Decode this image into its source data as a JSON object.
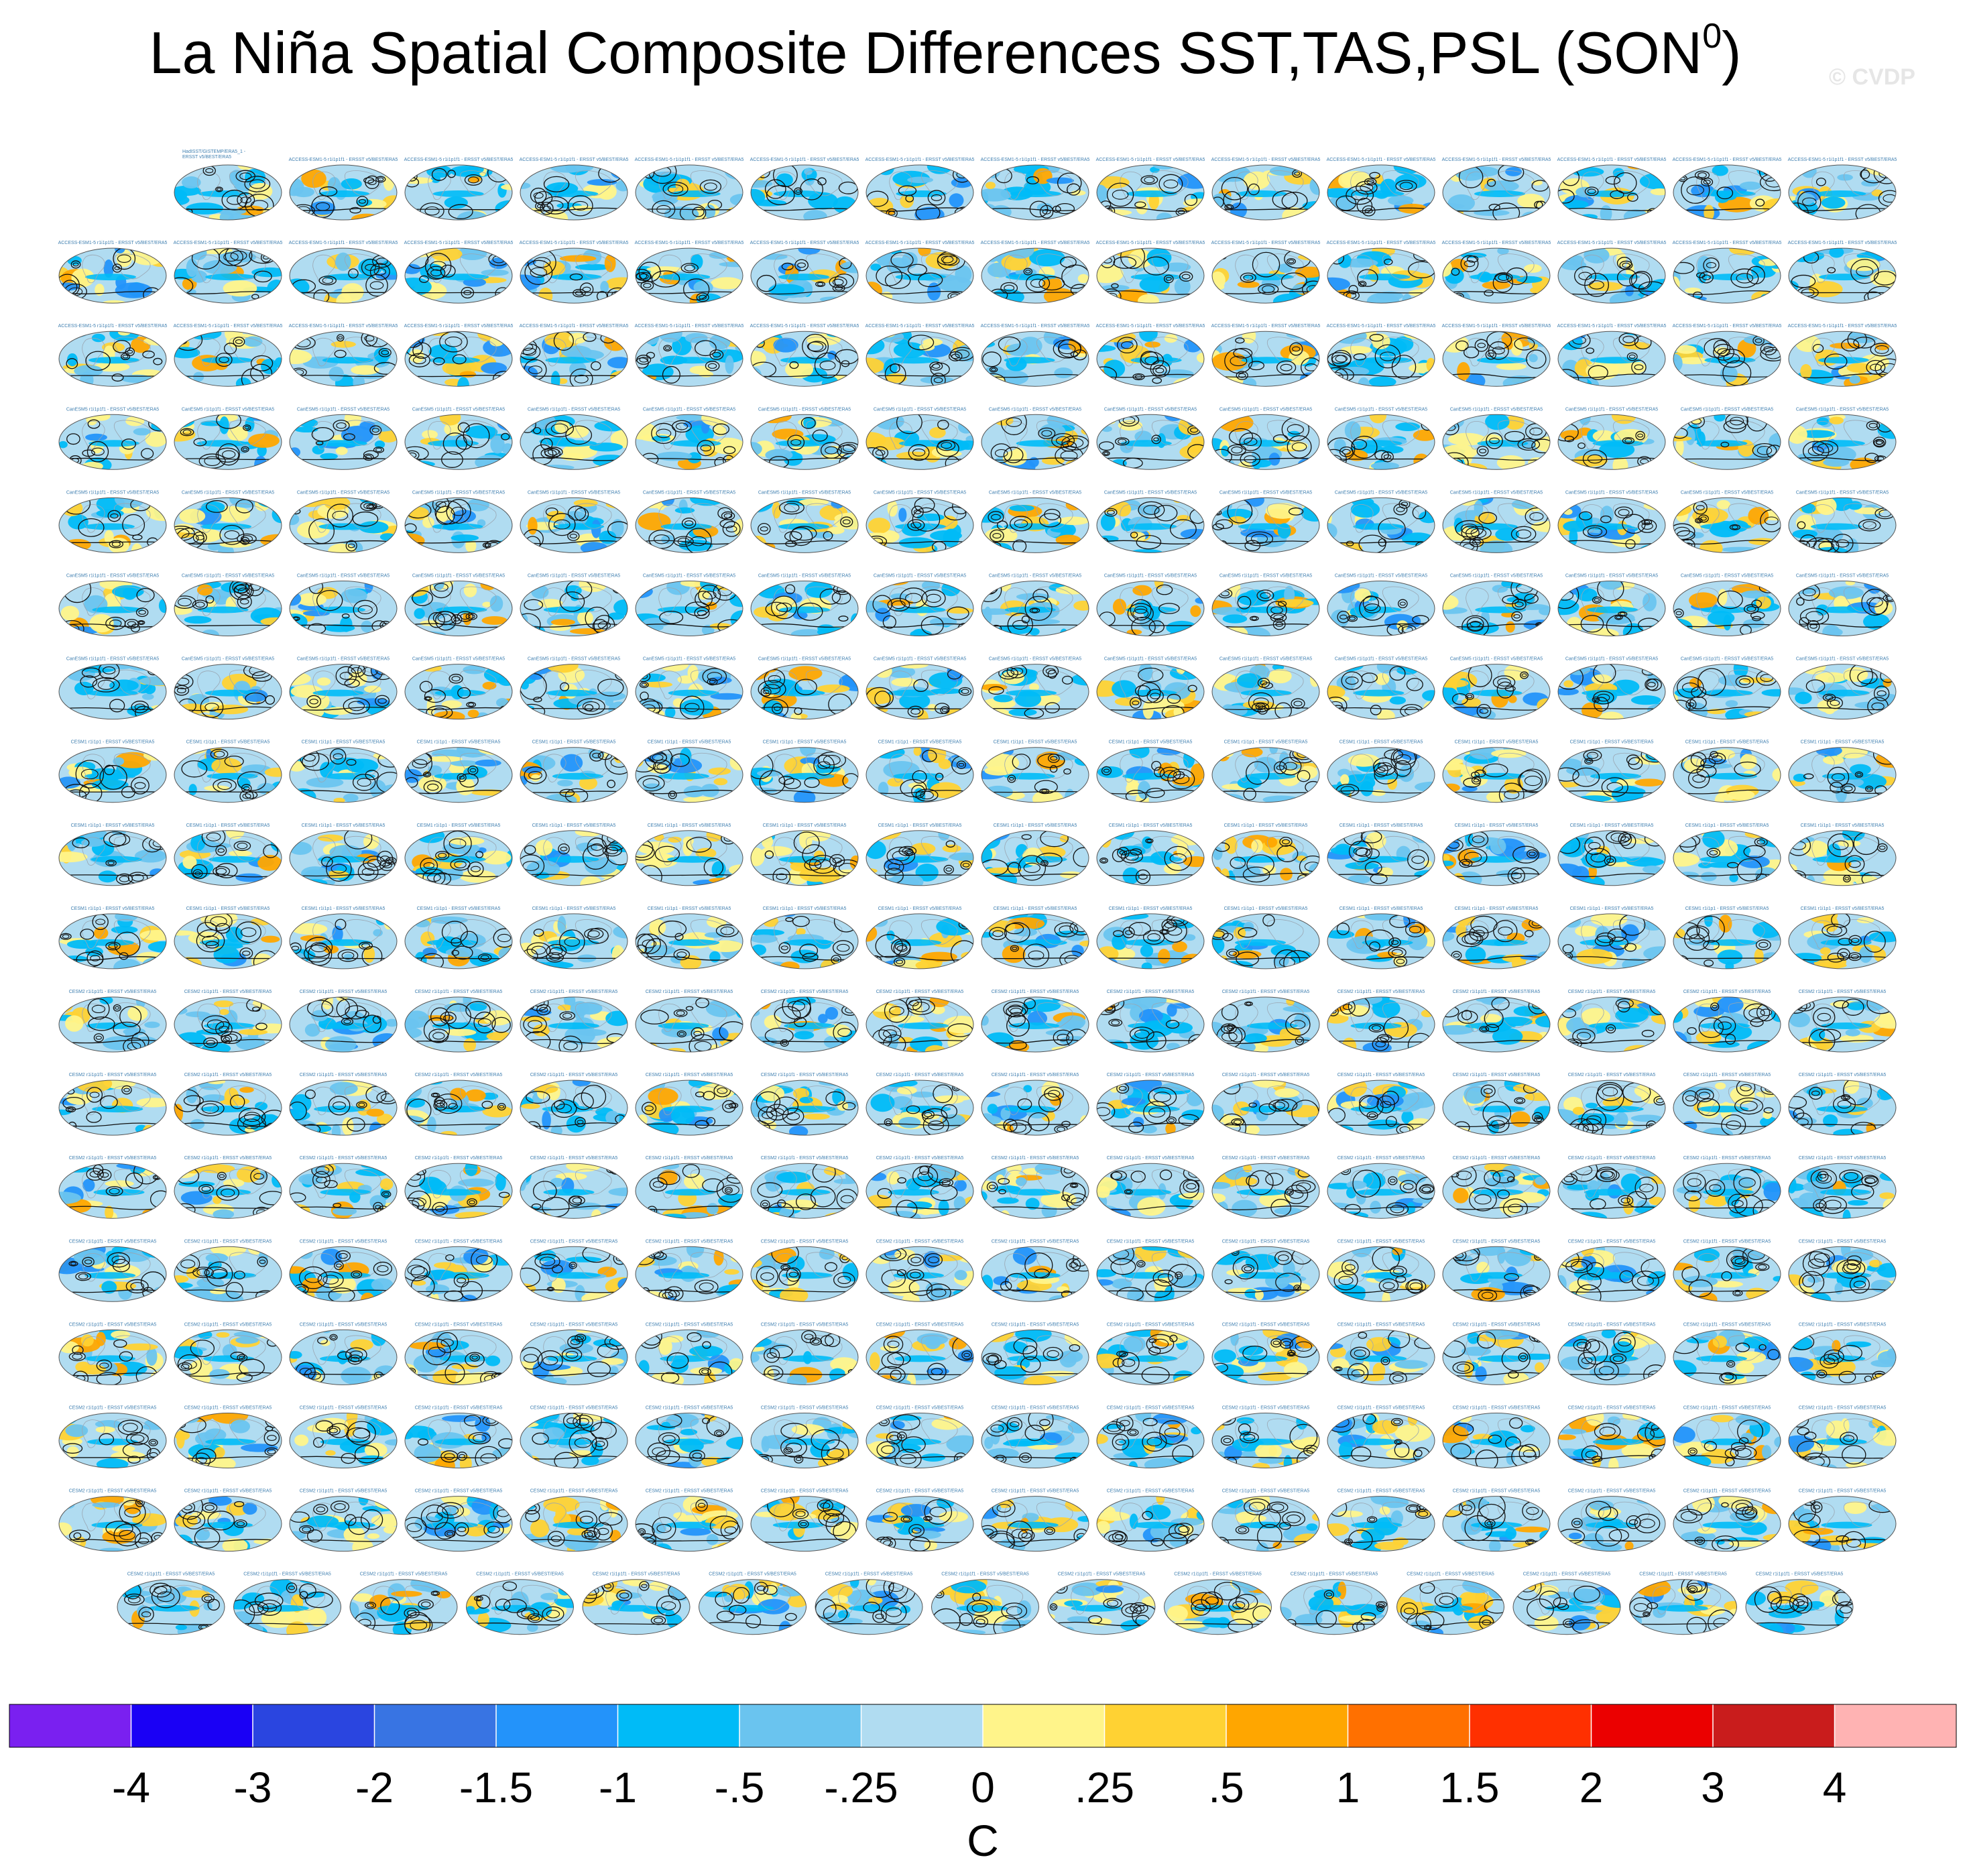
{
  "title": {
    "main": "La Niña Spatial Composite Differences SST,TAS,PSL (SON",
    "superscript": "0",
    "close": ")"
  },
  "watermark": "© CVDP",
  "chart_data": {
    "type": "heatmap",
    "layout": "panel-grid",
    "rows": 18,
    "panels_per_row": [
      15,
      16,
      16,
      16,
      16,
      16,
      16,
      16,
      16,
      16,
      16,
      16,
      16,
      16,
      16,
      16,
      16,
      15
    ],
    "panel_titles": {
      "first": [
        "HadISST/GISTEMP/ERA5_1 -",
        "ERSST v5/BEST/ERA5"
      ],
      "row_groups": [
        {
          "rows": [
            0,
            1,
            2
          ],
          "text": "ACCESS-ESM1-5 r1i1p1f1 - ERSST v5/BEST/ERA5",
          "color": "#3b7fae"
        },
        {
          "rows": [
            3,
            4,
            5,
            6
          ],
          "text": "CanESM5 r1i1p1f1 - ERSST v5/BEST/ERA5",
          "color": "#6c9a3c"
        },
        {
          "rows": [
            7,
            8,
            9
          ],
          "text": "CESM1 r1i1p1 - ERSST v5/BEST/ERA5",
          "color": "#b0452a"
        },
        {
          "rows": [
            10,
            11,
            12,
            13,
            14,
            15,
            16,
            17
          ],
          "text": "CESM2 r1i1p1f1 - ERSST v5/BEST/ERA5",
          "color": "#8a6fd0"
        }
      ]
    },
    "colorbar": {
      "boundaries": [
        "-4",
        "-3",
        "-2",
        "-1.5",
        "-1",
        "-.5",
        "-.25",
        "0",
        ".25",
        ".5",
        "1",
        "1.5",
        "2",
        "3",
        "4"
      ],
      "colors": [
        "#7a20f0",
        "#1a00f5",
        "#2a45e0",
        "#3874e3",
        "#2393fa",
        "#00bbf7",
        "#6ac4ef",
        "#b0dcf1",
        "#fff48a",
        "#ffd233",
        "#ffa600",
        "#ff7000",
        "#ff3000",
        "#eb0000",
        "#c91c1c",
        "#ffb3b3"
      ],
      "units": "C"
    }
  }
}
